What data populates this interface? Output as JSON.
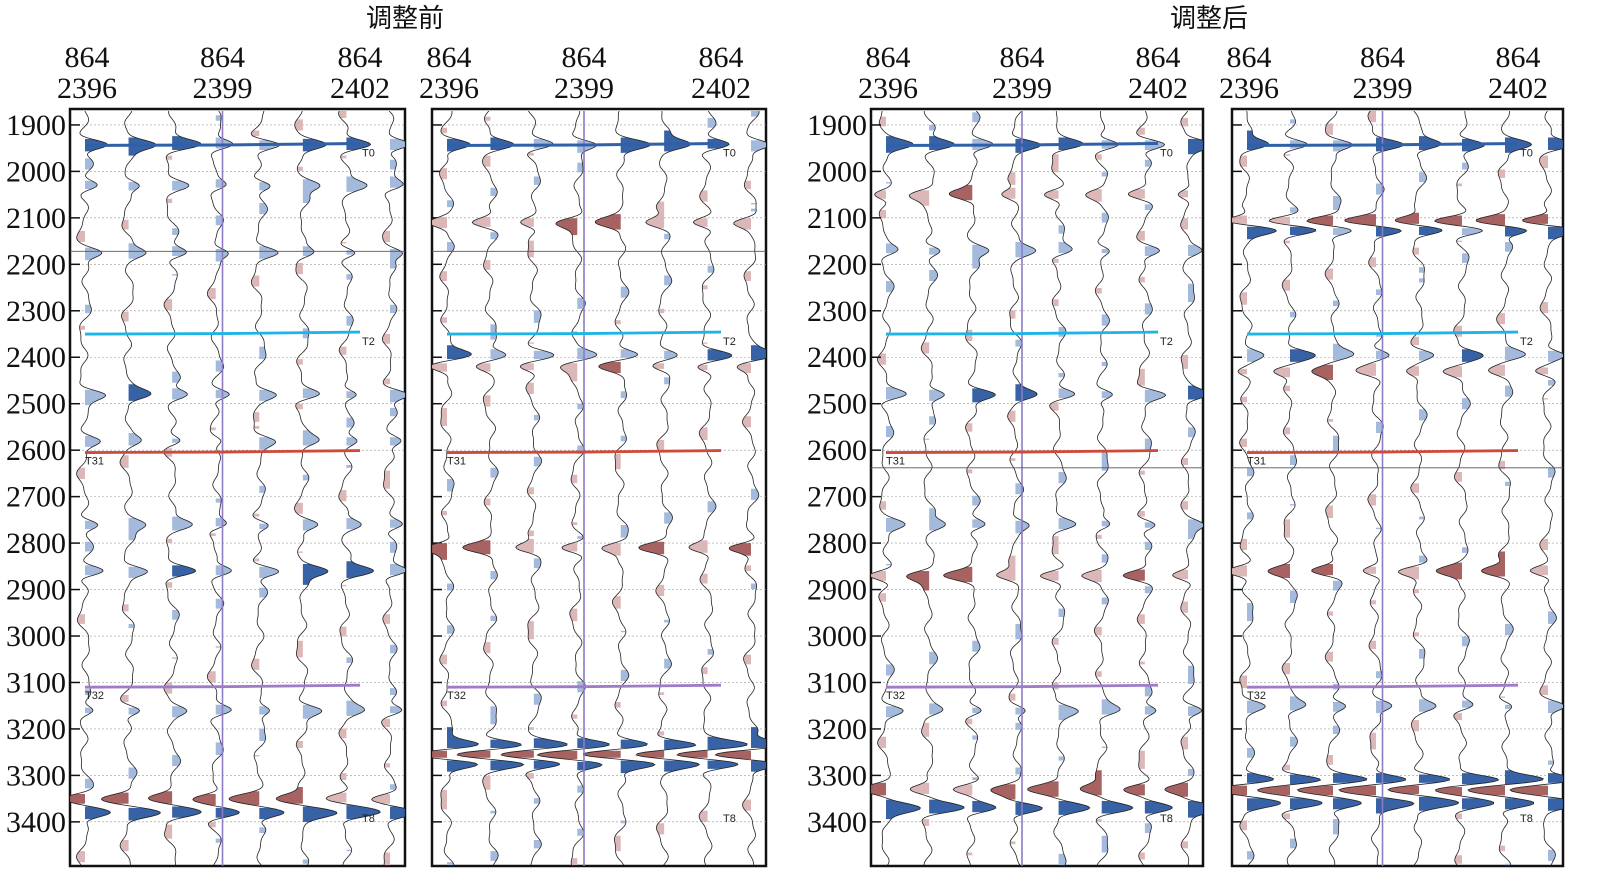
{
  "groups": [
    {
      "title": "调整前"
    },
    {
      "title": "调整后"
    }
  ],
  "trace_header": {
    "inline": "864",
    "crosslines": [
      "2396",
      "2399",
      "2402"
    ]
  },
  "time_axis": {
    "ticks": [
      "1900",
      "2000",
      "2100",
      "2200",
      "2300",
      "2400",
      "2500",
      "2600",
      "2700",
      "2800",
      "2900",
      "3000",
      "3100",
      "3200",
      "3300",
      "3400"
    ],
    "range": [
      1870,
      3495
    ]
  },
  "horizons": [
    {
      "name": "T0",
      "color": "#3060a8",
      "time": 1942
    },
    {
      "name": "T2",
      "color": "#1eb4e6",
      "time": 2348
    },
    {
      "name": "T31",
      "color": "#d04a3c",
      "time": 2603
    },
    {
      "name": "T32",
      "color": "#a07cc8",
      "time": 3108
    },
    {
      "name": "T8",
      "color": "#3060a8",
      "time": 3375
    }
  ],
  "colors": {
    "positive": "#2c5aa0",
    "positive_light": "#9fb6da",
    "negative": "#a25a5a",
    "negative_light": "#d9b3b3",
    "trace": "#222222",
    "vertical_marker": "#8c7cc4",
    "grid": "#9a9a9a"
  }
}
